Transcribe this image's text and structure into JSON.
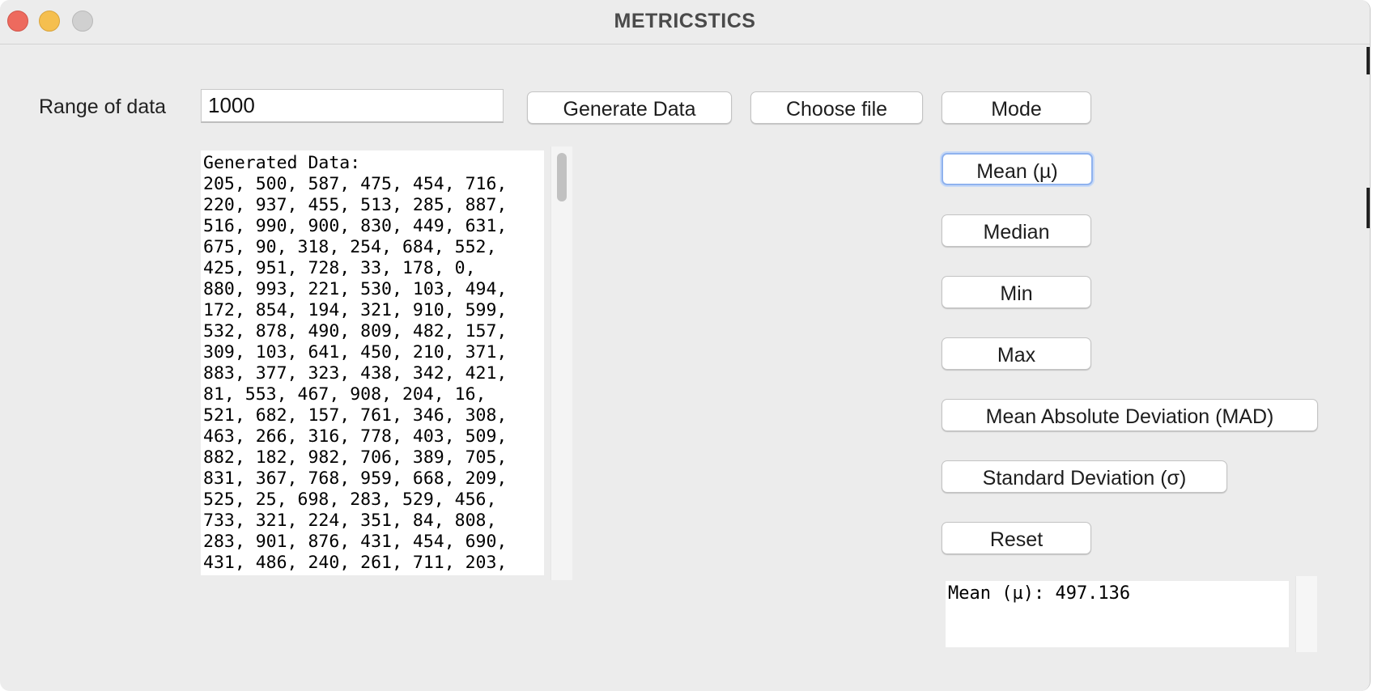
{
  "window": {
    "title": "METRICSTICS"
  },
  "range": {
    "label": "Range of data",
    "value": "1000"
  },
  "buttons": {
    "generate": "Generate Data",
    "choose_file": "Choose file",
    "mode": "Mode",
    "mean": "Mean (µ)",
    "median": "Median",
    "min": "Min",
    "max": "Max",
    "mad": "Mean Absolute Deviation (MAD)",
    "std": "Standard Deviation (σ)",
    "reset": "Reset"
  },
  "output": {
    "text": "Generated Data:\n205, 500, 587, 475, 454, 716,\n220, 937, 455, 513, 285, 887,\n516, 990, 900, 830, 449, 631,\n675, 90, 318, 254, 684, 552,\n425, 951, 728, 33, 178, 0,\n880, 993, 221, 530, 103, 494,\n172, 854, 194, 321, 910, 599,\n532, 878, 490, 809, 482, 157,\n309, 103, 641, 450, 210, 371,\n883, 377, 323, 438, 342, 421,\n81, 553, 467, 908, 204, 16,\n521, 682, 157, 761, 346, 308,\n463, 266, 316, 778, 403, 509,\n882, 182, 982, 706, 389, 705,\n831, 367, 768, 959, 668, 209,\n525, 25, 698, 283, 529, 456,\n733, 321, 224, 351, 84, 808,\n283, 901, 876, 431, 454, 690,\n431, 486, 240, 261, 711, 203,"
  },
  "result": {
    "text": "Mean (µ): 497.136"
  },
  "colors": {
    "close": "#ed6a5e",
    "minimize": "#f5bf4f",
    "maximize": "#d0d0d0",
    "focus_ring": "#8fb2ee"
  }
}
